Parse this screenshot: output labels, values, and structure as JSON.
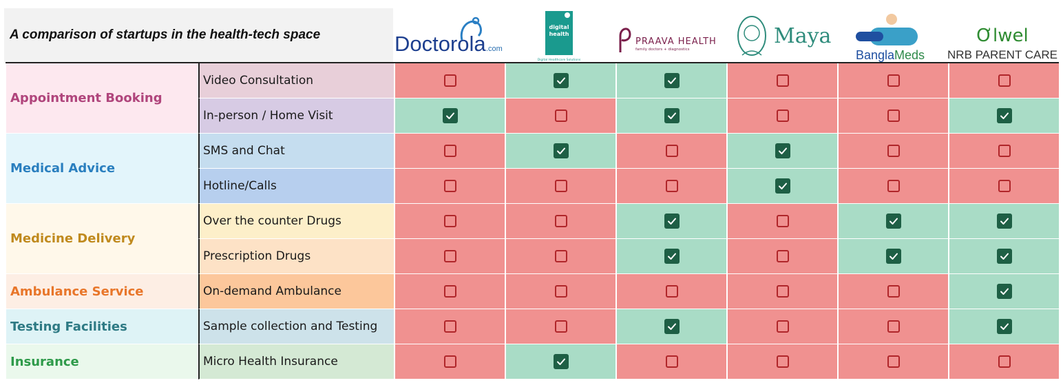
{
  "title": "A comparison of startups in the health-tech space",
  "logos": [
    {
      "name": "doctorola",
      "text": "Doctorola",
      "suffix": ".com",
      "color": "#1d3f8f"
    },
    {
      "name": "digital-health",
      "text": "digital health",
      "sub": "Digital Healthcare Solutions",
      "color": "#1a9a8e"
    },
    {
      "name": "praava-health",
      "text": "PRAAVA HEALTH",
      "sub": "family doctors + diagnostics",
      "color": "#7a1f4b"
    },
    {
      "name": "maya",
      "text": "Maya",
      "color": "#2f8c7c"
    },
    {
      "name": "banglameds",
      "text_a": "Bangla",
      "text_b": "Meds",
      "color": "#1f6fb5"
    },
    {
      "name": "olwel",
      "text": "Ơlwel",
      "sub": "NRB PARENT CARE",
      "color": "#2f8c32"
    }
  ],
  "categories": [
    {
      "name": "appointment-booking",
      "label": "Appointment Booking",
      "color": "#b0457c",
      "bg": "#fde8ef",
      "features": [
        {
          "label": "Video Consultation",
          "bg": "#e8cfd9",
          "checks": [
            false,
            true,
            true,
            false,
            false,
            false
          ]
        },
        {
          "label": "In-person / Home Visit",
          "bg": "#d7cbe4",
          "checks": [
            true,
            false,
            true,
            false,
            false,
            true
          ]
        }
      ]
    },
    {
      "name": "medical-advice",
      "label": "Medical Advice",
      "color": "#2a7fbf",
      "bg": "#e3f5fb",
      "features": [
        {
          "label": "SMS and Chat",
          "bg": "#c5ddef",
          "checks": [
            false,
            true,
            false,
            true,
            false,
            false
          ]
        },
        {
          "label": "Hotline/Calls",
          "bg": "#b7cfee",
          "checks": [
            false,
            false,
            false,
            true,
            false,
            false
          ]
        }
      ]
    },
    {
      "name": "medicine-delivery",
      "label": "Medicine Delivery",
      "color": "#c08a1e",
      "bg": "#fff8ea",
      "features": [
        {
          "label": "Over the counter Drugs",
          "bg": "#fdefc9",
          "checks": [
            false,
            false,
            true,
            false,
            true,
            true
          ]
        },
        {
          "label": "Prescription Drugs",
          "bg": "#fde2c6",
          "checks": [
            false,
            false,
            true,
            false,
            true,
            true
          ]
        }
      ]
    },
    {
      "name": "ambulance-service",
      "label": "Ambulance Service",
      "color": "#e8762a",
      "bg": "#fdeee4",
      "features": [
        {
          "label": "On-demand Ambulance",
          "bg": "#fcc79b",
          "checks": [
            false,
            false,
            false,
            false,
            false,
            true
          ]
        }
      ]
    },
    {
      "name": "testing-facilities",
      "label": "Testing Facilities",
      "color": "#2e7a84",
      "bg": "#def3f6",
      "features": [
        {
          "label": "Sample collection and Testing",
          "bg": "#cde2ea",
          "checks": [
            false,
            false,
            true,
            false,
            false,
            true
          ]
        }
      ]
    },
    {
      "name": "insurance",
      "label": "Insurance",
      "color": "#2e9a4a",
      "bg": "#eaf8ec",
      "features": [
        {
          "label": "Micro Health Insurance",
          "bg": "#d4e9d4",
          "checks": [
            false,
            true,
            false,
            false,
            false,
            false
          ]
        }
      ]
    }
  ]
}
